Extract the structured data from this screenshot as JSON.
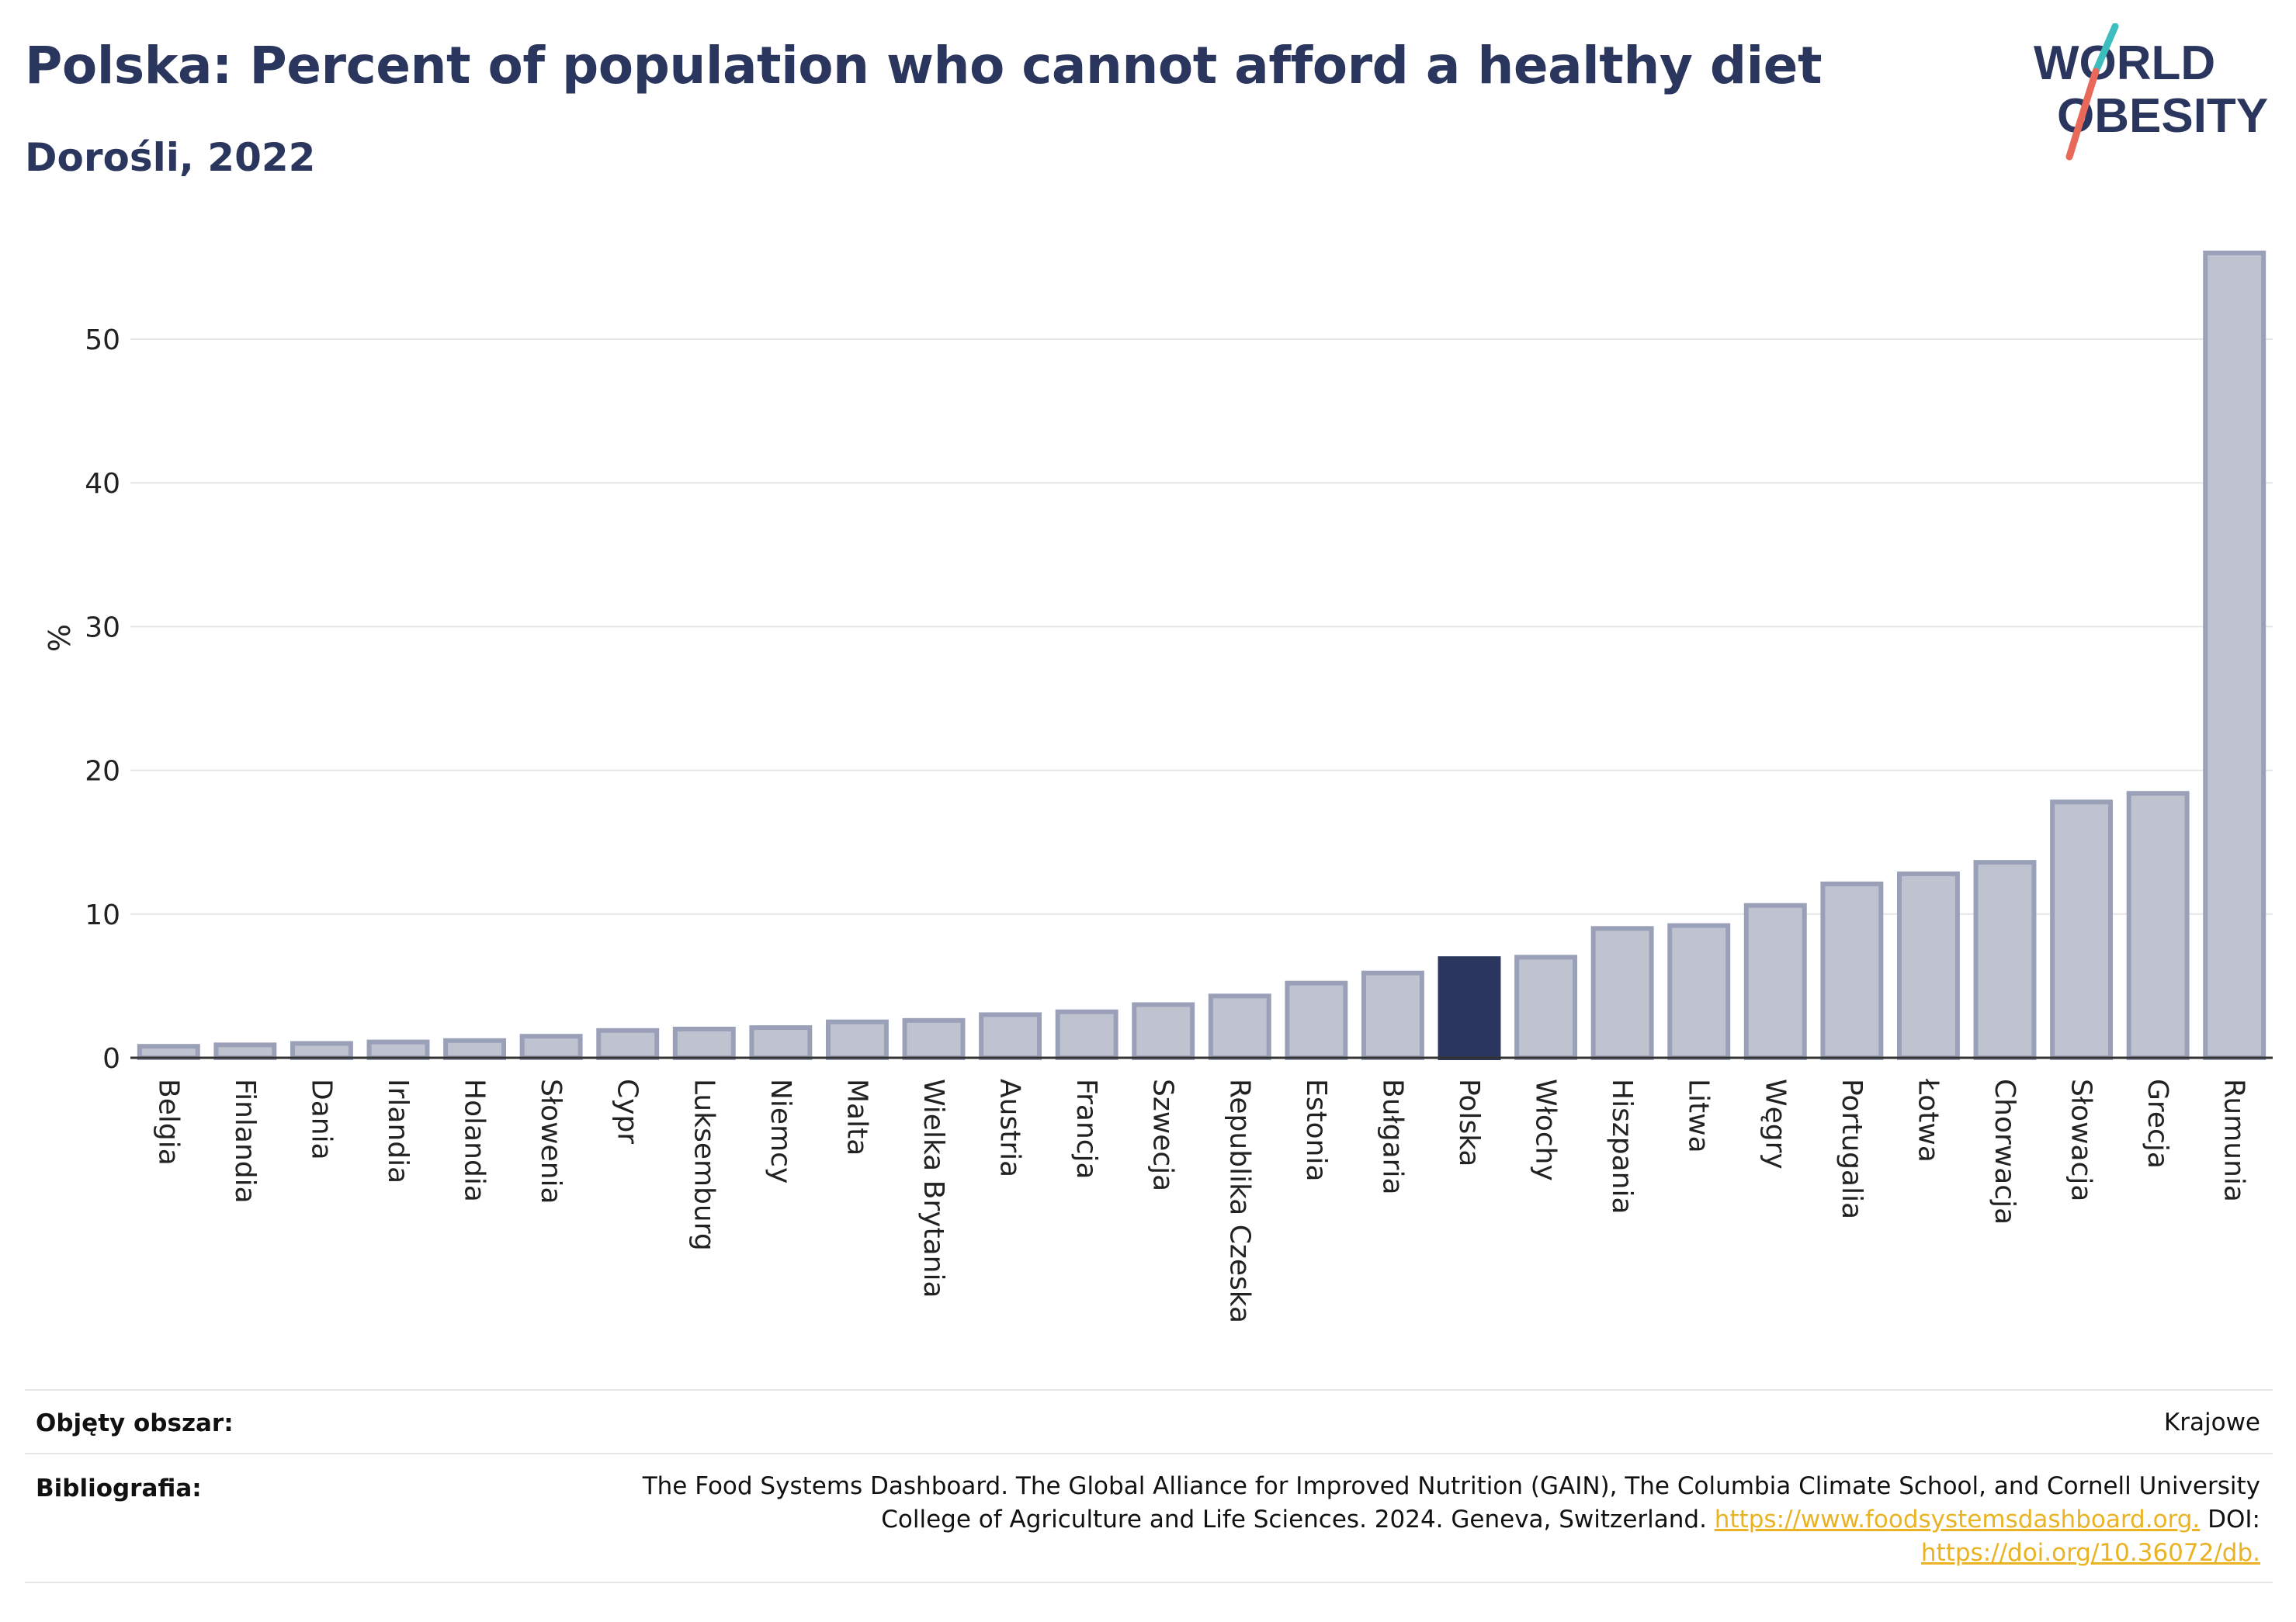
{
  "header": {
    "title": "Polska: Percent of population who cannot afford a healthy diet",
    "subtitle": "Dorośli, 2022",
    "logo_line1": "WORLD",
    "logo_line2": "OBESITY"
  },
  "colors": {
    "bar": "#bfc3d0",
    "bar_stroke": "#9aa0b8",
    "highlight": "#2b365e",
    "logo_teal": "#3dbdbd",
    "logo_coral": "#e8685a",
    "link": "#e9b324"
  },
  "chart_data": {
    "type": "bar",
    "ylabel": "%",
    "ylim": [
      0,
      58
    ],
    "yticks": [
      0,
      10,
      20,
      30,
      40,
      50
    ],
    "grid": true,
    "highlight": "Polska",
    "categories": [
      "Belgia",
      "Finlandia",
      "Dania",
      "Irlandia",
      "Holandia",
      "Słowenia",
      "Cypr",
      "Luksemburg",
      "Niemcy",
      "Malta",
      "Wielka Brytania",
      "Austria",
      "Francja",
      "Szwecja",
      "Republika Czeska",
      "Estonia",
      "Bułgaria",
      "Polska",
      "Włochy",
      "Hiszpania",
      "Litwa",
      "Węgry",
      "Portugalia",
      "Łotwa",
      "Chorwacja",
      "Słowacja",
      "Grecja",
      "Rumunia"
    ],
    "values": [
      0.8,
      0.9,
      1.0,
      1.1,
      1.2,
      1.5,
      1.9,
      2.0,
      2.1,
      2.5,
      2.6,
      3.0,
      3.2,
      3.7,
      4.3,
      5.2,
      5.9,
      6.9,
      7.0,
      9.0,
      9.2,
      10.6,
      12.1,
      12.8,
      13.6,
      17.8,
      18.4,
      56.0
    ]
  },
  "footer": {
    "area_label": "Objęty obszar:",
    "area_value": "Krajowe",
    "biblio_label": "Bibliografia:",
    "biblio_line1": "The Food Systems Dashboard. The Global Alliance for Improved Nutrition (GAIN), The Columbia Climate School, and Cornell University",
    "biblio_line2_text": "College of Agriculture and Life Sciences. 2024. Geneva, Switzerland.",
    "biblio_link1": "https://www.foodsystemsdashboard.org.",
    "biblio_doi_label": "DOI:",
    "biblio_link2": "https://doi.org/10.36072/db."
  }
}
